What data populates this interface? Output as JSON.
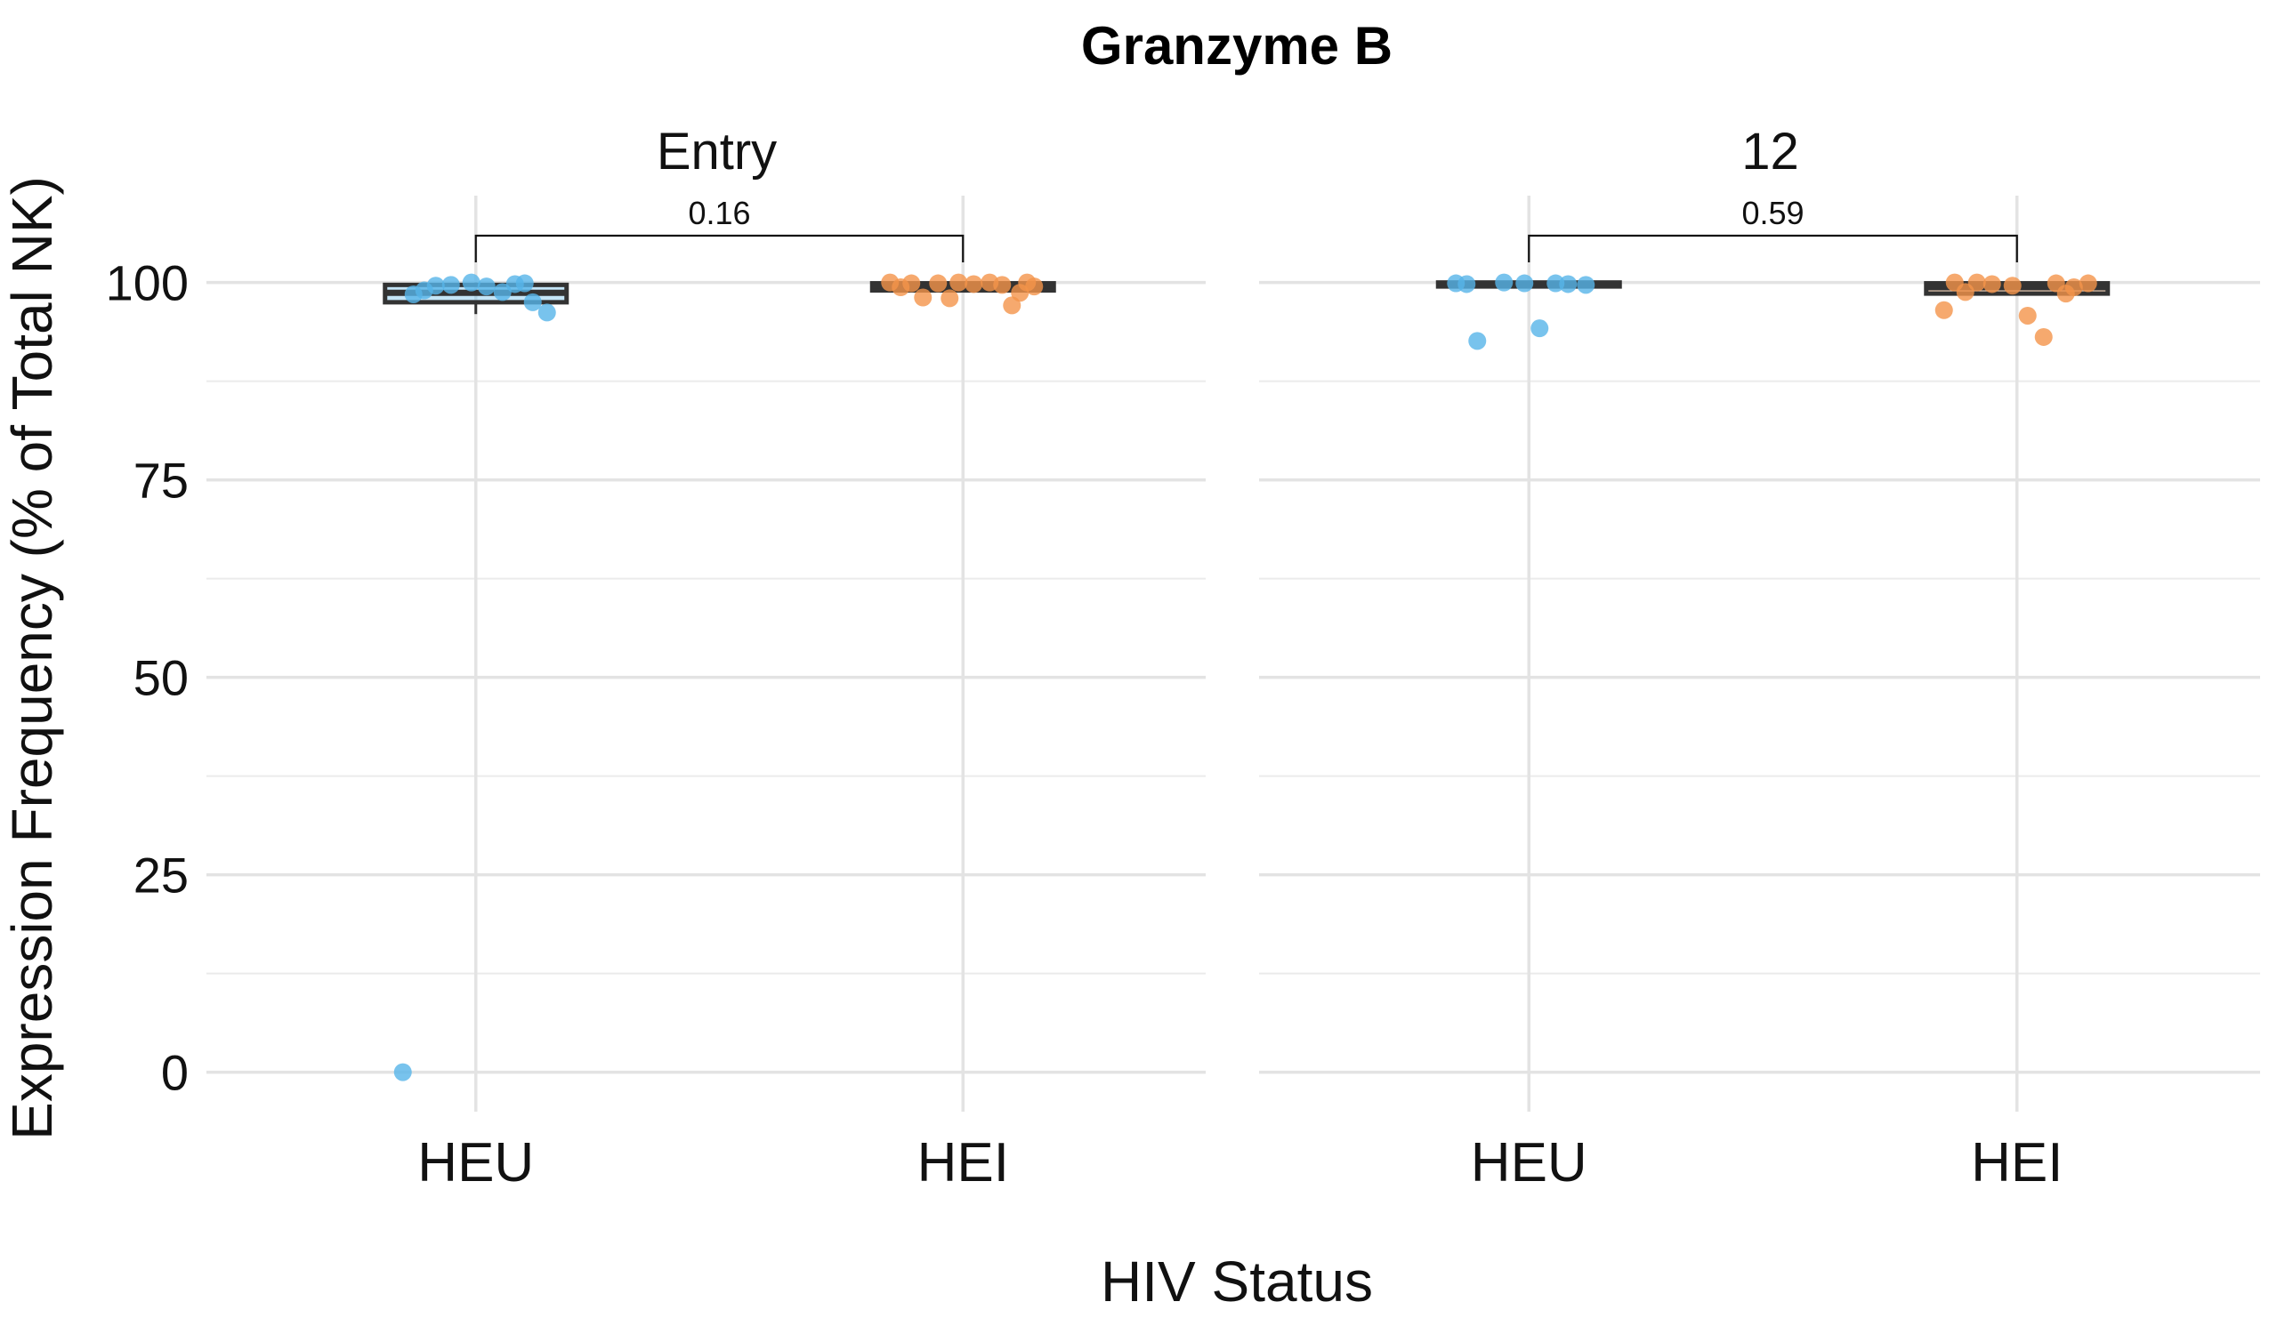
{
  "chart_data": {
    "type": "box",
    "title": "Granzyme B",
    "xlabel": "HIV Status",
    "ylabel": "Expression Frequency (% of Total NK)",
    "ylim": [
      -5,
      111
    ],
    "yticks": [
      0,
      25,
      50,
      75,
      100
    ],
    "categories": [
      "HEU",
      "HEI"
    ],
    "grid": true,
    "colors": {
      "HEU": "#56B4E9",
      "HEI": "#F4944A",
      "box_outline": "#333333"
    },
    "panels": [
      {
        "label": "Entry",
        "p_value": "0.16",
        "groups": [
          {
            "name": "HEU",
            "box": {
              "q1": 97.5,
              "median": 98.7,
              "q3": 99.7,
              "whisker_low": 96.0,
              "whisker_high": 100.0
            },
            "points": [
              0.0,
              98.5,
              99.7,
              100.0,
              99.5,
              98.8,
              99.8,
              99.0,
              97.5,
              96.2,
              99.6,
              99.9
            ]
          },
          {
            "name": "HEI",
            "box": {
              "q1": 99.0,
              "median": 99.6,
              "q3": 99.9,
              "whisker_low": 98.8,
              "whisker_high": 100.0
            },
            "points": [
              100.0,
              99.4,
              99.9,
              100.0,
              99.8,
              100.0,
              99.7,
              99.9,
              98.7,
              99.5,
              98.1,
              97.1,
              100.0,
              98.0
            ]
          }
        ]
      },
      {
        "label": "12",
        "p_value": "0.59",
        "groups": [
          {
            "name": "HEU",
            "box": {
              "q1": 99.5,
              "median": 99.8,
              "q3": 100.0,
              "whisker_low": 99.4,
              "whisker_high": 100.0
            },
            "points": [
              99.9,
              99.8,
              100.0,
              99.9,
              94.2,
              99.9,
              99.8,
              92.6,
              99.7
            ]
          },
          {
            "name": "HEI",
            "box": {
              "q1": 98.6,
              "median": 99.4,
              "q3": 99.9,
              "whisker_low": 98.4,
              "whisker_high": 100.0
            },
            "points": [
              96.5,
              100.0,
              99.8,
              99.6,
              95.8,
              93.1,
              99.9,
              98.8,
              99.4,
              99.9,
              100.0,
              98.6
            ]
          }
        ]
      }
    ]
  }
}
